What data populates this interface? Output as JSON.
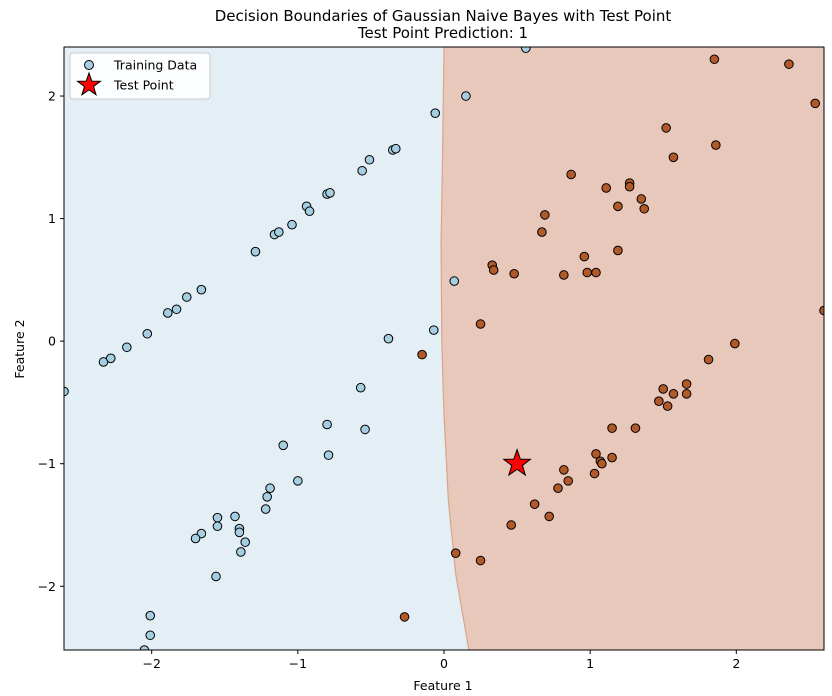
{
  "chart_data": {
    "type": "scatter",
    "title": "Decision Boundaries of Gaussian Naive Bayes with Test Point",
    "subtitle": "Test Point Prediction: 1",
    "xlabel": "Feature 1",
    "ylabel": "Feature 2",
    "xlim": [
      -2.6,
      2.6
    ],
    "ylim": [
      -2.52,
      2.4
    ],
    "xticks": [
      -2,
      -1,
      0,
      1,
      2
    ],
    "xtick_labels": [
      "−2",
      "−1",
      "0",
      "1",
      "2"
    ],
    "yticks": [
      -2,
      -1,
      0,
      1,
      2
    ],
    "ytick_labels": [
      "−2",
      "−1",
      "0",
      "1",
      "2"
    ],
    "grid": false,
    "legend_position": "top-left",
    "regions": {
      "class_0_color": "#e3eef5",
      "class_1_color": "#e8c8ba",
      "boundary_color": "#d9a58a",
      "boundary": [
        [
          0.0,
          2.4
        ],
        [
          -0.01,
          1.5
        ],
        [
          -0.02,
          0.8
        ],
        [
          -0.015,
          0.0
        ],
        [
          0.0,
          -0.6
        ],
        [
          0.03,
          -1.3
        ],
        [
          0.08,
          -1.9
        ],
        [
          0.17,
          -2.52
        ]
      ]
    },
    "legend": [
      {
        "label": "Training Data",
        "marker": "circle"
      },
      {
        "label": "Test Point",
        "marker": "star"
      }
    ],
    "series": [
      {
        "name": "Training Data",
        "classes": [
          {
            "class": 0,
            "color": "#a6cee3",
            "points": [
              [
                -2.6,
                -0.41
              ],
              [
                -2.33,
                -0.17
              ],
              [
                -2.28,
                -0.14
              ],
              [
                -2.17,
                -0.05
              ],
              [
                -2.03,
                0.06
              ],
              [
                -1.89,
                0.23
              ],
              [
                -1.83,
                0.26
              ],
              [
                -1.76,
                0.36
              ],
              [
                -1.66,
                0.42
              ],
              [
                -1.29,
                0.73
              ],
              [
                -1.16,
                0.87
              ],
              [
                -1.13,
                0.89
              ],
              [
                -1.04,
                0.95
              ],
              [
                -0.94,
                1.1
              ],
              [
                -0.92,
                1.06
              ],
              [
                -0.8,
                1.2
              ],
              [
                -0.78,
                1.21
              ],
              [
                -0.56,
                1.39
              ],
              [
                -0.51,
                1.48
              ],
              [
                -0.35,
                1.56
              ],
              [
                -0.33,
                1.57
              ],
              [
                -0.06,
                1.86
              ],
              [
                0.15,
                2.0
              ],
              [
                0.56,
                2.39
              ],
              [
                0.07,
                0.49
              ],
              [
                -0.07,
                0.09
              ],
              [
                -0.38,
                0.02
              ],
              [
                -0.57,
                -0.38
              ],
              [
                -0.54,
                -0.72
              ],
              [
                -0.8,
                -0.68
              ],
              [
                -0.79,
                -0.93
              ],
              [
                -1.0,
                -1.14
              ],
              [
                -1.1,
                -0.85
              ],
              [
                -1.19,
                -1.2
              ],
              [
                -1.21,
                -1.27
              ],
              [
                -1.22,
                -1.37
              ],
              [
                -1.4,
                -1.53
              ],
              [
                -1.4,
                -1.56
              ],
              [
                -1.43,
                -1.43
              ],
              [
                -1.36,
                -1.64
              ],
              [
                -1.39,
                -1.72
              ],
              [
                -1.55,
                -1.44
              ],
              [
                -1.55,
                -1.51
              ],
              [
                -1.66,
                -1.57
              ],
              [
                -1.7,
                -1.61
              ],
              [
                -1.56,
                -1.92
              ],
              [
                -2.01,
                -2.24
              ],
              [
                -2.01,
                -2.4
              ],
              [
                -2.05,
                -2.52
              ]
            ]
          },
          {
            "class": 1,
            "color": "#b15928",
            "points": [
              [
                1.85,
                2.3
              ],
              [
                2.36,
                2.26
              ],
              [
                2.54,
                1.94
              ],
              [
                1.52,
                1.74
              ],
              [
                1.86,
                1.6
              ],
              [
                1.57,
                1.5
              ],
              [
                0.87,
                1.36
              ],
              [
                1.27,
                1.29
              ],
              [
                1.27,
                1.26
              ],
              [
                1.11,
                1.25
              ],
              [
                1.35,
                1.16
              ],
              [
                1.19,
                1.1
              ],
              [
                1.37,
                1.08
              ],
              [
                0.69,
                1.03
              ],
              [
                0.67,
                0.89
              ],
              [
                1.19,
                0.74
              ],
              [
                0.96,
                0.69
              ],
              [
                0.33,
                0.62
              ],
              [
                0.34,
                0.58
              ],
              [
                0.48,
                0.55
              ],
              [
                0.98,
                0.56
              ],
              [
                1.04,
                0.56
              ],
              [
                0.82,
                0.54
              ],
              [
                2.6,
                0.25
              ],
              [
                0.25,
                0.14
              ],
              [
                1.99,
                -0.02
              ],
              [
                -0.15,
                -0.11
              ],
              [
                1.81,
                -0.15
              ],
              [
                1.66,
                -0.35
              ],
              [
                1.5,
                -0.39
              ],
              [
                1.57,
                -0.43
              ],
              [
                1.66,
                -0.43
              ],
              [
                1.47,
                -0.49
              ],
              [
                1.53,
                -0.53
              ],
              [
                1.15,
                -0.71
              ],
              [
                1.31,
                -0.71
              ],
              [
                1.04,
                -0.92
              ],
              [
                1.15,
                -0.95
              ],
              [
                1.07,
                -0.98
              ],
              [
                1.08,
                -1.0
              ],
              [
                0.82,
                -1.05
              ],
              [
                1.03,
                -1.08
              ],
              [
                0.85,
                -1.14
              ],
              [
                0.78,
                -1.2
              ],
              [
                0.62,
                -1.33
              ],
              [
                0.72,
                -1.43
              ],
              [
                0.46,
                -1.5
              ],
              [
                0.08,
                -1.73
              ],
              [
                0.25,
                -1.79
              ],
              [
                -0.27,
                -2.25
              ]
            ]
          }
        ]
      },
      {
        "name": "Test Point",
        "color": "#ff0000",
        "points": [
          [
            0.5,
            -1.0
          ]
        ]
      }
    ]
  }
}
